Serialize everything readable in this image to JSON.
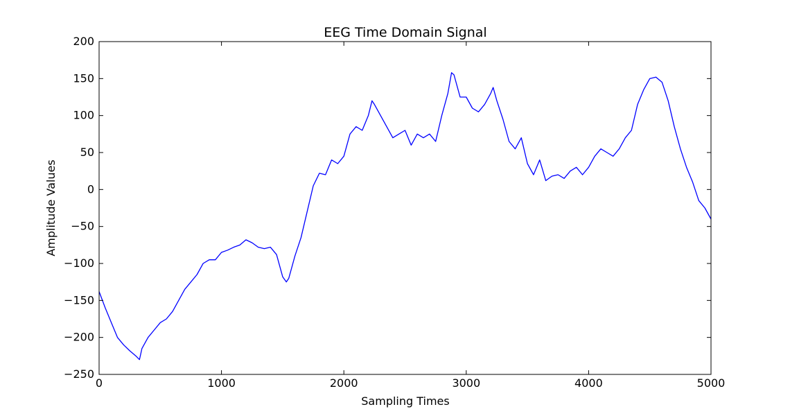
{
  "chart_data": {
    "type": "line",
    "title": "EEG Time Domain Signal",
    "xlabel": "Sampling Times",
    "ylabel": "Amplitude Values",
    "xlim": [
      0,
      5000
    ],
    "ylim": [
      -250,
      200
    ],
    "xticks": [
      0,
      1000,
      2000,
      3000,
      4000,
      5000
    ],
    "yticks": [
      -250,
      -200,
      -150,
      -100,
      -50,
      0,
      50,
      100,
      150,
      200
    ],
    "xtick_labels": [
      "0",
      "1000",
      "2000",
      "3000",
      "4000",
      "5000"
    ],
    "ytick_labels": [
      "−250",
      "−200",
      "−150",
      "−100",
      "−50",
      "0",
      "50",
      "100",
      "150",
      "200"
    ],
    "grid": false,
    "legend": "none",
    "line_color": "#0000ff",
    "series": [
      {
        "x": [
          0,
          50,
          100,
          150,
          200,
          250,
          300,
          330,
          350,
          400,
          450,
          500,
          550,
          600,
          650,
          700,
          750,
          800,
          850,
          900,
          950,
          1000,
          1050,
          1100,
          1150,
          1200,
          1250,
          1300,
          1350,
          1400,
          1450,
          1500,
          1530,
          1550,
          1600,
          1650,
          1700,
          1750,
          1800,
          1850,
          1900,
          1950,
          2000,
          2050,
          2100,
          2150,
          2200,
          2230,
          2250,
          2300,
          2350,
          2400,
          2450,
          2500,
          2550,
          2600,
          2650,
          2700,
          2750,
          2800,
          2850,
          2880,
          2900,
          2950,
          3000,
          3050,
          3100,
          3150,
          3200,
          3220,
          3250,
          3300,
          3350,
          3400,
          3450,
          3500,
          3550,
          3600,
          3650,
          3700,
          3750,
          3800,
          3850,
          3900,
          3950,
          4000,
          4050,
          4100,
          4150,
          4200,
          4250,
          4300,
          4350,
          4400,
          4450,
          4500,
          4550,
          4600,
          4650,
          4700,
          4750,
          4800,
          4850,
          4900,
          4950,
          5000
        ],
        "y": [
          -138,
          -160,
          -180,
          -200,
          -210,
          -218,
          -225,
          -230,
          -215,
          -200,
          -190,
          -180,
          -175,
          -165,
          -150,
          -135,
          -125,
          -115,
          -100,
          -95,
          -95,
          -85,
          -82,
          -78,
          -75,
          -68,
          -72,
          -78,
          -80,
          -78,
          -88,
          -118,
          -125,
          -120,
          -90,
          -65,
          -30,
          5,
          22,
          20,
          40,
          35,
          45,
          75,
          85,
          80,
          100,
          120,
          115,
          100,
          85,
          70,
          75,
          80,
          60,
          75,
          70,
          75,
          65,
          100,
          130,
          158,
          155,
          125,
          125,
          110,
          105,
          115,
          130,
          138,
          120,
          95,
          65,
          55,
          70,
          35,
          20,
          40,
          12,
          18,
          20,
          15,
          25,
          30,
          20,
          30,
          45,
          55,
          50,
          45,
          55,
          70,
          80,
          115,
          135,
          150,
          152,
          145,
          120,
          85,
          55,
          30,
          10,
          -15,
          -25,
          -40
        ]
      }
    ]
  }
}
